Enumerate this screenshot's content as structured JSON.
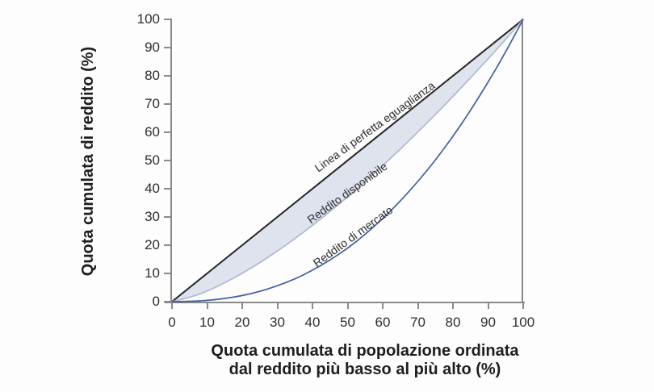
{
  "figure": {
    "y_axis": {
      "title": "Quota cumulata di reddito (%)",
      "ticks": [
        "0",
        "10",
        "20",
        "30",
        "40",
        "50",
        "60",
        "70",
        "80",
        "90",
        "100"
      ]
    },
    "x_axis": {
      "title_line1": "Quota cumulata di popolazione ordinata",
      "title_line2": "dal reddito più basso al più alto (%)",
      "ticks": [
        "0",
        "10",
        "20",
        "30",
        "40",
        "50",
        "60",
        "70",
        "80",
        "90",
        "100"
      ]
    },
    "curve_labels": {
      "equality": "Linea di perfetta eguaglianza",
      "disposable": "Reddito disponibile",
      "market": "Reddito di mercato"
    },
    "colors": {
      "equality_line": "#262626",
      "disposable_line": "#aeb8cf",
      "market_line": "#44609c",
      "area_fill": "#dfe3ee",
      "axis": "#8a8a8a",
      "text": "#1e1e1e"
    }
  },
  "chart_data": {
    "type": "line",
    "title": "",
    "xlabel": "Quota cumulata di popolazione ordinata dal reddito più basso al più alto (%)",
    "ylabel": "Quota cumulata di reddito (%)",
    "xlim": [
      0,
      100
    ],
    "ylim": [
      0,
      100
    ],
    "grid": false,
    "legend_position": "inline-rotated-labels",
    "x": [
      0,
      5,
      10,
      15,
      20,
      25,
      30,
      35,
      40,
      45,
      50,
      55,
      60,
      65,
      70,
      75,
      80,
      85,
      90,
      95,
      100
    ],
    "series": [
      {
        "name": "Linea di perfetta eguaglianza",
        "values": [
          0,
          5,
          10,
          15,
          20,
          25,
          30,
          35,
          40,
          45,
          50,
          55,
          60,
          65,
          70,
          75,
          80,
          85,
          90,
          95,
          100
        ]
      },
      {
        "name": "Reddito disponibile",
        "values": [
          0,
          1.4,
          3.7,
          6.6,
          10,
          13.8,
          17.9,
          22.3,
          27,
          31.9,
          37.1,
          42.5,
          48.2,
          54,
          60.1,
          66.3,
          72.7,
          79.3,
          86,
          92.9,
          100
        ]
      },
      {
        "name": "Reddito di mercato",
        "values": [
          0,
          0.1,
          0.4,
          1.1,
          2.1,
          3.6,
          5.6,
          8,
          11.1,
          14.7,
          18.9,
          23.8,
          29.4,
          35.6,
          42.5,
          50.1,
          58.5,
          67.7,
          77.7,
          88.4,
          100
        ]
      }
    ],
    "shaded_area_between": [
      "Linea di perfetta eguaglianza",
      "Reddito disponibile"
    ]
  }
}
